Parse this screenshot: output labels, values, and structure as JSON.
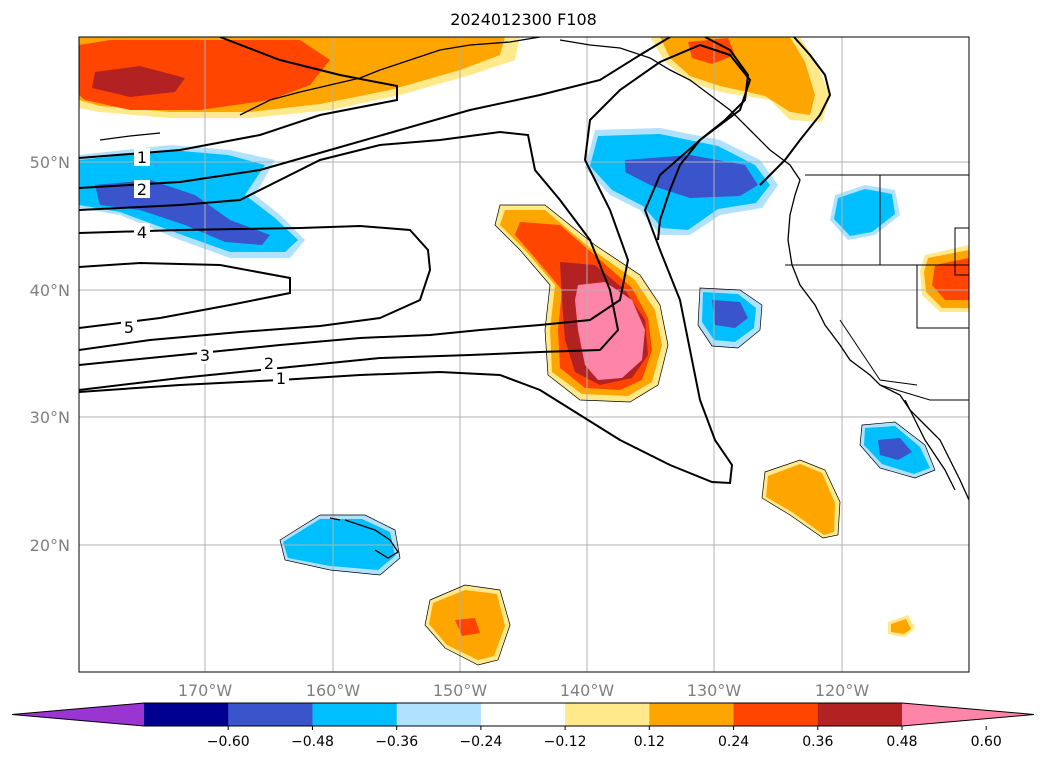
{
  "title": "2024012300 F108",
  "map": {
    "lat_labels": [
      "50°N",
      "40°N",
      "30°N",
      "20°N"
    ],
    "lon_labels": [
      "170°W",
      "160°W",
      "150°W",
      "140°W",
      "130°W",
      "120°W"
    ],
    "contour_labels": [
      "1",
      "2",
      "4",
      "5",
      "3",
      "2",
      "1"
    ]
  },
  "colorbar": {
    "ticks": [
      "−0.60",
      "−0.48",
      "−0.36",
      "−0.24",
      "−0.12",
      "0.12",
      "0.24",
      "0.36",
      "0.48",
      "0.60"
    ],
    "colors": [
      "#9a35d1",
      "#000090",
      "#3a55cc",
      "#00bfff",
      "#b0e2ff",
      "#ffffff",
      "#ffe98a",
      "#ffa500",
      "#ff4500",
      "#b22222",
      "#ff85a8"
    ]
  }
}
